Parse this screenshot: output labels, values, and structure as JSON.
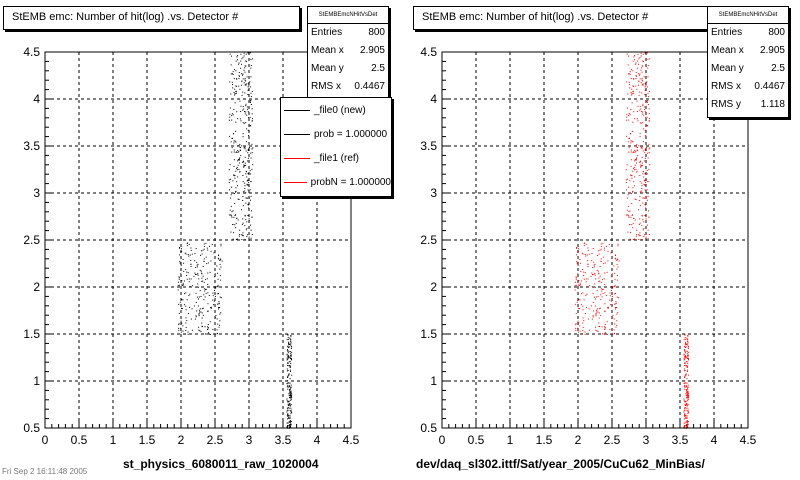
{
  "chart_data": [
    {
      "type": "scatter",
      "title": "StEMB emc: Number of hit(log) .vs. Detector #",
      "xlabel": "st_physics_6080011_raw_1020004",
      "ylabel": "",
      "xlim": [
        0,
        4.5
      ],
      "ylim": [
        0.5,
        4.5
      ],
      "xticks": [
        "0",
        "0.5",
        "1",
        "1.5",
        "2",
        "2.5",
        "3",
        "3.5",
        "4",
        "4.5"
      ],
      "yticks": [
        "0.5",
        "1",
        "1.5",
        "2",
        "2.5",
        "3",
        "3.5",
        "4",
        "4.5"
      ],
      "grid": true,
      "marker_color": "#000000",
      "clusters": [
        {
          "x_range": [
            2.7,
            3.05
          ],
          "y_range": [
            2.5,
            4.5
          ],
          "count": 340
        },
        {
          "x_range": [
            1.95,
            2.6
          ],
          "y_range": [
            1.5,
            2.5
          ],
          "count": 260
        },
        {
          "x_range": [
            3.55,
            3.62
          ],
          "y_range": [
            0.5,
            1.5
          ],
          "count": 200
        }
      ],
      "stats": {
        "name": "StEMBEmcNHitVsDet",
        "rows": [
          {
            "label": "Entries",
            "value": "800"
          },
          {
            "label": "Mean x",
            "value": "2.905"
          },
          {
            "label": "Mean y",
            "value": "2.5"
          },
          {
            "label": "RMS x",
            "value": "0.4467"
          }
        ]
      },
      "legend": [
        {
          "label": "_file0 (new)",
          "color": "#000000"
        },
        {
          "label": "prob = 1.000000",
          "color": "#000000"
        },
        {
          "label": "_file1 (ref)",
          "color": "#ff0000"
        },
        {
          "label": "probN = 1.000000",
          "color": "#ff0000"
        }
      ]
    },
    {
      "type": "scatter",
      "title": "StEMB emc: Number of hit(log) .vs. Detector #",
      "xlabel": "dev/daq_sl302.ittf/Sat/year_2005/CuCu62_MinBias/",
      "ylabel": "",
      "xlim": [
        0,
        4.5
      ],
      "ylim": [
        0.5,
        4.5
      ],
      "xticks": [
        "0",
        "0.5",
        "1",
        "1.5",
        "2",
        "2.5",
        "3",
        "3.5",
        "4",
        "4.5"
      ],
      "yticks": [
        "0.5",
        "1",
        "1.5",
        "2",
        "2.5",
        "3",
        "3.5",
        "4",
        "4.5"
      ],
      "grid": true,
      "marker_color": "#ff0000",
      "clusters": [
        {
          "x_range": [
            2.7,
            3.05
          ],
          "y_range": [
            2.5,
            4.5
          ],
          "count": 340
        },
        {
          "x_range": [
            1.95,
            2.6
          ],
          "y_range": [
            1.5,
            2.5
          ],
          "count": 260
        },
        {
          "x_range": [
            3.55,
            3.62
          ],
          "y_range": [
            0.5,
            1.5
          ],
          "count": 200
        }
      ],
      "stats": {
        "name": "StEMBEmcNHitVsDet",
        "rows": [
          {
            "label": "Entries",
            "value": "800"
          },
          {
            "label": "Mean x",
            "value": "2.905"
          },
          {
            "label": "Mean y",
            "value": "2.5"
          },
          {
            "label": "RMS x",
            "value": "0.4467"
          },
          {
            "label": "RMS y",
            "value": "1.118"
          }
        ]
      }
    }
  ],
  "footer_note": "Fri Sep 2 16:11:48 2005"
}
